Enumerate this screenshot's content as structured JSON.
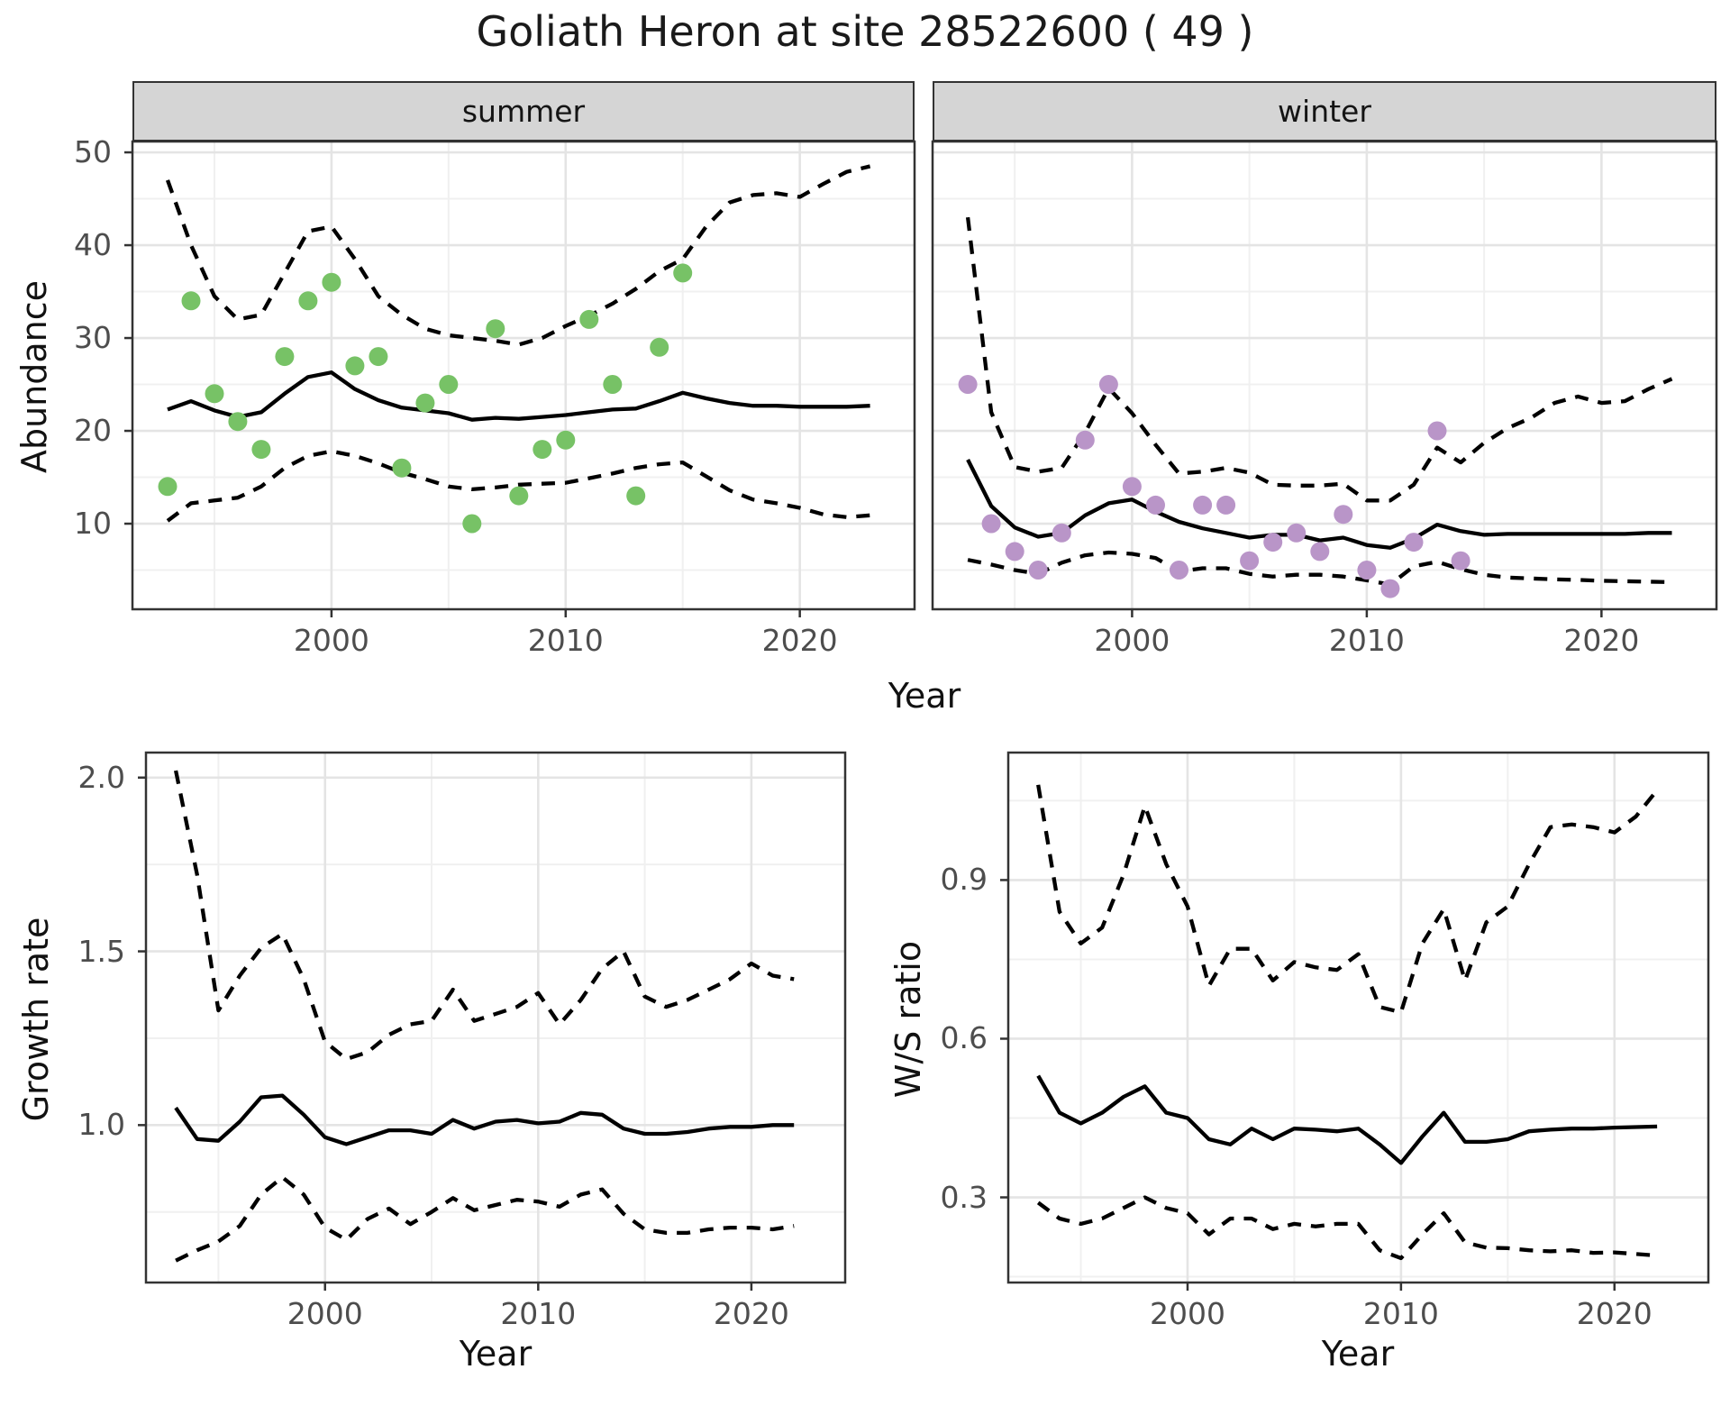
{
  "figure": {
    "title": "Goliath Heron at site 28522600 ( 49 )"
  },
  "labels": {
    "y_top": "Abundance",
    "x_top": "Year",
    "y_growth": "Growth rate",
    "x_growth": "Year",
    "y_ws": "W/S ratio",
    "x_ws": "Year"
  },
  "axes": {
    "top_y_ticks": [
      "10",
      "20",
      "30",
      "40",
      "50"
    ],
    "top_x_ticks": [
      "2000",
      "2010",
      "2020"
    ],
    "growth_y_ticks": [
      "1.0",
      "1.5",
      "2.0"
    ],
    "ws_y_ticks": [
      "0.3",
      "0.6",
      "0.9"
    ],
    "bottom_x_ticks": [
      "2000",
      "2010",
      "2020"
    ]
  },
  "colors": {
    "summer_point": "#77c266",
    "winter_point": "#b995c8",
    "line": "#000000",
    "grid_major": "#e4e4e4",
    "grid_minor": "#f0f0f0",
    "panel_border": "#333333",
    "strip_bg": "#d5d5d5",
    "tick_text": "#4d4d4d"
  },
  "chart_data": [
    {
      "id": "abundance-summer",
      "type": "line+scatter",
      "facet": "summer",
      "xlabel": "Year",
      "ylabel": "Abundance",
      "xlim": [
        1991.5,
        2024.9
      ],
      "ylim": [
        0.78,
        51.17
      ],
      "x": [
        1993,
        1994,
        1995,
        1996,
        1997,
        1998,
        1999,
        2000,
        2001,
        2002,
        2003,
        2004,
        2005,
        2006,
        2007,
        2008,
        2009,
        2010,
        2011,
        2012,
        2013,
        2014,
        2015,
        2016,
        2017,
        2018,
        2019,
        2020,
        2021,
        2022,
        2023
      ],
      "series": [
        {
          "name": "median",
          "style": "solid",
          "values": [
            22.3,
            23.2,
            22.2,
            21.5,
            22.0,
            24.0,
            25.8,
            26.3,
            24.5,
            23.3,
            22.5,
            22.2,
            21.9,
            21.2,
            21.4,
            21.3,
            21.5,
            21.7,
            22.0,
            22.3,
            22.4,
            23.2,
            24.1,
            23.5,
            23.0,
            22.7,
            22.7,
            22.6,
            22.6,
            22.6,
            22.7
          ]
        },
        {
          "name": "upper_ci",
          "style": "dashed",
          "values": [
            47,
            40,
            34.5,
            32,
            32.5,
            37,
            41.5,
            42,
            38.5,
            34.5,
            32.5,
            31,
            30.3,
            30,
            29.7,
            29.3,
            30,
            31.3,
            32.4,
            33.7,
            35.3,
            37.2,
            38.5,
            42,
            44.6,
            45.4,
            45.6,
            45.2,
            46.6,
            47.9,
            48.5
          ]
        },
        {
          "name": "lower_ci",
          "style": "dashed",
          "values": [
            10.3,
            12.2,
            12.5,
            12.8,
            14,
            16,
            17.3,
            17.8,
            17.3,
            16.5,
            15.5,
            14.8,
            14,
            13.7,
            13.9,
            14.2,
            14.3,
            14.4,
            14.9,
            15.4,
            16,
            16.4,
            16.6,
            15.1,
            13.6,
            12.6,
            12.2,
            11.7,
            11,
            10.7,
            10.9
          ]
        }
      ],
      "points": {
        "years": [
          1993,
          1994,
          1995,
          1996,
          1997,
          1998,
          1999,
          2000,
          2001,
          2002,
          2003,
          2004,
          2005,
          2006,
          2007,
          2008,
          2009,
          2010,
          2011,
          2012,
          2013,
          2014,
          2015
        ],
        "values": [
          14,
          34,
          24,
          21,
          18,
          28,
          34,
          36,
          27,
          28,
          16,
          23,
          25,
          10,
          31,
          13,
          18,
          19,
          32,
          25,
          13,
          29,
          37
        ]
      }
    },
    {
      "id": "abundance-winter",
      "type": "line+scatter",
      "facet": "winter",
      "xlabel": "Year",
      "ylabel": "Abundance",
      "xlim": [
        1991.5,
        2024.9
      ],
      "ylim": [
        0.78,
        51.17
      ],
      "x": [
        1993,
        1994,
        1995,
        1996,
        1997,
        1998,
        1999,
        2000,
        2001,
        2002,
        2003,
        2004,
        2005,
        2006,
        2007,
        2008,
        2009,
        2010,
        2011,
        2012,
        2013,
        2014,
        2015,
        2016,
        2017,
        2018,
        2019,
        2020,
        2021,
        2022,
        2023
      ],
      "series": [
        {
          "name": "median",
          "style": "solid",
          "values": [
            16.9,
            11.9,
            9.6,
            8.6,
            9.0,
            10.9,
            12.2,
            12.6,
            11.3,
            10.2,
            9.5,
            9.0,
            8.5,
            8.8,
            8.8,
            8.2,
            8.5,
            7.7,
            7.4,
            8.4,
            9.9,
            9.2,
            8.8,
            8.9,
            8.9,
            8.9,
            8.9,
            8.9,
            8.9,
            9.0,
            9.0
          ]
        },
        {
          "name": "upper_ci",
          "style": "dashed",
          "values": [
            43,
            22,
            16.1,
            15.6,
            16,
            19.8,
            24.6,
            21.9,
            18.5,
            15.4,
            15.6,
            16,
            15.5,
            14.2,
            14.1,
            14.1,
            14.3,
            12.5,
            12.5,
            14.2,
            18.2,
            16.6,
            18.7,
            20.3,
            21.4,
            23,
            23.7,
            23,
            23.2,
            24.5,
            25.6
          ]
        },
        {
          "name": "lower_ci",
          "style": "dashed",
          "values": [
            6.1,
            5.6,
            5,
            4.6,
            5.8,
            6.6,
            6.9,
            6.75,
            6.3,
            4.85,
            5.2,
            5.2,
            4.6,
            4.3,
            4.5,
            4.5,
            4.3,
            3.9,
            3.45,
            5.4,
            5.9,
            5.1,
            4.5,
            4.2,
            4.1,
            4,
            3.95,
            3.85,
            3.8,
            3.75,
            3.7
          ]
        }
      ],
      "points": {
        "years": [
          1993,
          1994,
          1995,
          1996,
          1997,
          1998,
          1999,
          2000,
          2001,
          2002,
          2003,
          2004,
          2005,
          2006,
          2007,
          2008,
          2009,
          2010,
          2011,
          2012,
          2013,
          2014
        ],
        "values": [
          25,
          10,
          7,
          5,
          9,
          19,
          25,
          14,
          12,
          5,
          12,
          12,
          6,
          8,
          9,
          7,
          11,
          5,
          3,
          8,
          20,
          6
        ]
      }
    },
    {
      "id": "growth-rate",
      "type": "line",
      "facet": null,
      "xlabel": "Year",
      "ylabel": "Growth rate",
      "xlim": [
        1991.6,
        2024.4
      ],
      "ylim": [
        0.547,
        2.072
      ],
      "x": [
        1993,
        1994,
        1995,
        1996,
        1997,
        1998,
        1999,
        2000,
        2001,
        2002,
        2003,
        2004,
        2005,
        2006,
        2007,
        2008,
        2009,
        2010,
        2011,
        2012,
        2013,
        2014,
        2015,
        2016,
        2017,
        2018,
        2019,
        2020,
        2021,
        2022
      ],
      "series": [
        {
          "name": "median",
          "style": "solid",
          "values": [
            1.05,
            0.96,
            0.955,
            1.01,
            1.08,
            1.085,
            1.03,
            0.965,
            0.945,
            0.965,
            0.985,
            0.985,
            0.975,
            1.015,
            0.99,
            1.01,
            1.015,
            1.005,
            1.01,
            1.035,
            1.03,
            0.99,
            0.975,
            0.975,
            0.98,
            0.99,
            0.995,
            0.995,
            1.0,
            1.0
          ]
        },
        {
          "name": "upper_ci",
          "style": "dashed",
          "values": [
            2.02,
            1.72,
            1.33,
            1.43,
            1.51,
            1.55,
            1.42,
            1.24,
            1.19,
            1.21,
            1.26,
            1.29,
            1.3,
            1.39,
            1.3,
            1.32,
            1.34,
            1.38,
            1.29,
            1.36,
            1.45,
            1.5,
            1.37,
            1.34,
            1.36,
            1.39,
            1.42,
            1.465,
            1.43,
            1.42
          ]
        },
        {
          "name": "lower_ci",
          "style": "dashed",
          "values": [
            0.61,
            0.64,
            0.665,
            0.71,
            0.8,
            0.85,
            0.8,
            0.705,
            0.67,
            0.73,
            0.76,
            0.715,
            0.75,
            0.79,
            0.755,
            0.77,
            0.785,
            0.78,
            0.765,
            0.8,
            0.815,
            0.745,
            0.7,
            0.69,
            0.69,
            0.7,
            0.705,
            0.705,
            0.7,
            0.71
          ]
        }
      ],
      "points": null
    },
    {
      "id": "ws-ratio",
      "type": "line",
      "facet": null,
      "xlabel": "Year",
      "ylabel": "W/S ratio",
      "xlim": [
        1991.6,
        2024.4
      ],
      "ylim": [
        0.139,
        1.141
      ],
      "x": [
        1993,
        1994,
        1995,
        1996,
        1997,
        1998,
        1999,
        2000,
        2001,
        2002,
        2003,
        2004,
        2005,
        2006,
        2007,
        2008,
        2009,
        2010,
        2011,
        2012,
        2013,
        2014,
        2015,
        2016,
        2017,
        2018,
        2019,
        2020,
        2021,
        2022
      ],
      "series": [
        {
          "name": "median",
          "style": "solid",
          "values": [
            0.53,
            0.46,
            0.44,
            0.46,
            0.49,
            0.51,
            0.46,
            0.45,
            0.41,
            0.4,
            0.43,
            0.41,
            0.43,
            0.428,
            0.425,
            0.43,
            0.4,
            0.365,
            0.415,
            0.46,
            0.405,
            0.405,
            0.41,
            0.425,
            0.428,
            0.43,
            0.43,
            0.432,
            0.433,
            0.434
          ]
        },
        {
          "name": "upper_ci",
          "style": "dashed",
          "values": [
            1.08,
            0.84,
            0.78,
            0.81,
            0.91,
            1.04,
            0.93,
            0.85,
            0.7,
            0.77,
            0.77,
            0.71,
            0.745,
            0.735,
            0.73,
            0.76,
            0.66,
            0.65,
            0.78,
            0.845,
            0.71,
            0.82,
            0.85,
            0.93,
            1.0,
            1.005,
            1.0,
            0.99,
            1.02,
            1.07
          ]
        },
        {
          "name": "lower_ci",
          "style": "dashed",
          "values": [
            0.29,
            0.26,
            0.25,
            0.26,
            0.28,
            0.3,
            0.28,
            0.27,
            0.23,
            0.26,
            0.26,
            0.24,
            0.25,
            0.245,
            0.25,
            0.25,
            0.2,
            0.185,
            0.23,
            0.27,
            0.215,
            0.205,
            0.204,
            0.2,
            0.198,
            0.2,
            0.195,
            0.196,
            0.193,
            0.19
          ]
        }
      ],
      "points": null
    }
  ]
}
